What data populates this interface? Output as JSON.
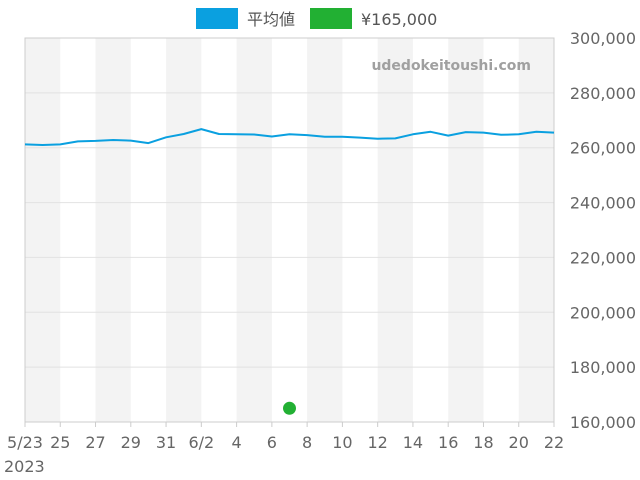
{
  "chart_data": {
    "type": "line",
    "watermark": "udedokeitoushi.com",
    "x_start_label": "2023",
    "x": [
      "5/23",
      "5/24",
      "5/25",
      "5/26",
      "5/27",
      "5/28",
      "5/29",
      "5/30",
      "5/31",
      "6/1",
      "6/2",
      "6/3",
      "6/4",
      "6/5",
      "6/6",
      "6/7",
      "6/8",
      "6/9",
      "6/10",
      "6/11",
      "6/12",
      "6/13",
      "6/14",
      "6/15",
      "6/16",
      "6/17",
      "6/18",
      "6/19",
      "6/20",
      "6/21",
      "6/22"
    ],
    "x_tick_labels": [
      "5/23",
      "25",
      "27",
      "29",
      "31",
      "6/2",
      "4",
      "6",
      "8",
      "10",
      "12",
      "14",
      "16",
      "18",
      "20",
      "22"
    ],
    "ylim": [
      160000,
      300000
    ],
    "y_tick_labels": [
      "300,000",
      "280,000",
      "260,000",
      "240,000",
      "220,000",
      "200,000",
      "180,000",
      "160,000"
    ],
    "y_ticks": [
      300000,
      280000,
      260000,
      240000,
      220000,
      200000,
      180000,
      160000
    ],
    "grid": true,
    "legend_position": "top",
    "series": [
      {
        "name": "平均値",
        "kind": "line",
        "color": "#0aa0e0",
        "values": [
          261200,
          261000,
          261200,
          262300,
          262500,
          262800,
          262600,
          261700,
          263800,
          265000,
          266800,
          265000,
          264900,
          264800,
          264100,
          264900,
          264600,
          264000,
          264000,
          263700,
          263300,
          263400,
          264900,
          265800,
          264400,
          265700,
          265500,
          264700,
          264900,
          265800,
          265500
        ]
      },
      {
        "name": "¥165,000",
        "kind": "point",
        "color": "#22b033",
        "points": [
          {
            "x": "6/7",
            "y": 165000
          }
        ]
      }
    ]
  }
}
